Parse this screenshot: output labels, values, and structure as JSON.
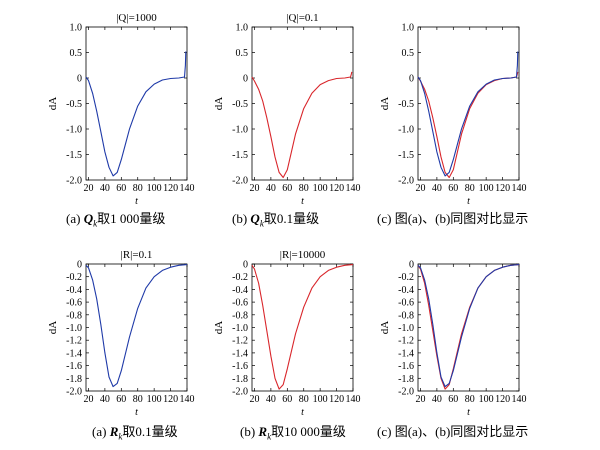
{
  "colors": {
    "blue": "#1f3aa8",
    "red": "#d9262b",
    "axis": "#000000"
  },
  "panels": [
    {
      "title": "|Q|=1000",
      "ylabel": "dA",
      "xlabel": "t",
      "xlim": [
        17,
        140
      ],
      "ylim": [
        -2.0,
        1.0
      ],
      "xticks": [
        20,
        40,
        60,
        80,
        100,
        120,
        140
      ],
      "yticks": [
        "1.0",
        "0.5",
        "0",
        "-0.5",
        "-1.0",
        "-1.5",
        "-2.0"
      ],
      "ytick_values": [
        1.0,
        0.5,
        0,
        -0.5,
        -1.0,
        -1.5,
        -2.0
      ],
      "series": [
        "blue"
      ],
      "caption": {
        "prefix": "(a) ",
        "symbol": "Q",
        "sub": "k",
        "text": "取1 000量级"
      }
    },
    {
      "title": "|Q|=0.1",
      "ylabel": "dA",
      "xlabel": "t",
      "xlim": [
        17,
        140
      ],
      "ylim": [
        -2.0,
        1.0
      ],
      "xticks": [
        20,
        40,
        60,
        80,
        100,
        120,
        140
      ],
      "yticks": [
        "1.0",
        "0.5",
        "0",
        "-0.5",
        "-1.0",
        "-1.5",
        "-2.0"
      ],
      "ytick_values": [
        1.0,
        0.5,
        0,
        -0.5,
        -1.0,
        -1.5,
        -2.0
      ],
      "series": [
        "red"
      ],
      "caption": {
        "prefix": "(b) ",
        "symbol": "Q",
        "sub": "k",
        "text": "取0.1量级"
      }
    },
    {
      "title": "",
      "ylabel": "dA",
      "xlabel": "t",
      "xlim": [
        17,
        140
      ],
      "ylim": [
        -2.0,
        1.0
      ],
      "xticks": [
        20,
        40,
        60,
        80,
        100,
        120,
        140
      ],
      "yticks": [
        "1.0",
        "0.5",
        "0",
        "-0.5",
        "-1.0",
        "-1.5",
        "-2.0"
      ],
      "ytick_values": [
        1.0,
        0.5,
        0,
        -0.5,
        -1.0,
        -1.5,
        -2.0
      ],
      "series": [
        "red",
        "blue"
      ],
      "caption": {
        "prefix": "(c) ",
        "symbol": "",
        "sub": "",
        "text": "图(a)、(b)同图对比显示"
      }
    },
    {
      "title": "|R|=0.1",
      "ylabel": "dA",
      "xlabel": "t",
      "xlim": [
        17,
        140
      ],
      "ylim": [
        -2.0,
        0
      ],
      "xticks": [
        20,
        40,
        60,
        80,
        100,
        120,
        140
      ],
      "yticks": [
        "0",
        "-0.2",
        "-0.4",
        "-0.6",
        "-0.8",
        "-1.0",
        "-1.2",
        "-1.4",
        "-1.6",
        "-1.8",
        "-2.0"
      ],
      "ytick_values": [
        0,
        -0.2,
        -0.4,
        -0.6,
        -0.8,
        -1.0,
        -1.2,
        -1.4,
        -1.6,
        -1.8,
        -2.0
      ],
      "series": [
        "blue"
      ],
      "caption": {
        "prefix": "(a) ",
        "symbol": "R",
        "sub": "k",
        "text": "取0.1量级"
      }
    },
    {
      "title": "|R|=10000",
      "ylabel": "dA",
      "xlabel": "t",
      "xlim": [
        17,
        140
      ],
      "ylim": [
        -2.0,
        0
      ],
      "xticks": [
        20,
        40,
        60,
        80,
        100,
        120,
        140
      ],
      "yticks": [
        "0",
        "-0.2",
        "-0.4",
        "-0.6",
        "-0.8",
        "-1.0",
        "-1.2",
        "-1.4",
        "-1.6",
        "-1.8",
        "-2.0"
      ],
      "ytick_values": [
        0,
        -0.2,
        -0.4,
        -0.6,
        -0.8,
        -1.0,
        -1.2,
        -1.4,
        -1.6,
        -1.8,
        -2.0
      ],
      "series": [
        "red"
      ],
      "caption": {
        "prefix": "(b) ",
        "symbol": "R",
        "sub": "k",
        "text": "取10 000量级"
      }
    },
    {
      "title": "",
      "ylabel": "dA",
      "xlabel": "t",
      "xlim": [
        17,
        140
      ],
      "ylim": [
        -2.0,
        0
      ],
      "xticks": [
        20,
        40,
        60,
        80,
        100,
        120,
        140
      ],
      "yticks": [
        "0",
        "-0.2",
        "-0.4",
        "-0.6",
        "-0.8",
        "-1.0",
        "-1.2",
        "-1.4",
        "-1.6",
        "-1.8",
        "-2.0"
      ],
      "ytick_values": [
        0,
        -0.2,
        -0.4,
        -0.6,
        -0.8,
        -1.0,
        -1.2,
        -1.4,
        -1.6,
        -1.8,
        -2.0
      ],
      "series": [
        "red",
        "blue"
      ],
      "caption": {
        "prefix": "(c) ",
        "symbol": "",
        "sub": "",
        "text": "图(a)、(b)同图对比显示"
      }
    }
  ],
  "chart_data": [
    {
      "type": "line",
      "title": "|Q|=1000",
      "xlabel": "t",
      "ylabel": "dA",
      "xlim": [
        17,
        140
      ],
      "ylim": [
        -2.0,
        1.0
      ],
      "grid": false,
      "x": [
        17,
        20,
        25,
        30,
        35,
        40,
        45,
        50,
        55,
        60,
        65,
        70,
        80,
        90,
        100,
        110,
        120,
        130,
        137,
        138,
        138.5
      ],
      "series": [
        {
          "color": "blue",
          "values": [
            0.02,
            -0.05,
            -0.3,
            -0.65,
            -1.05,
            -1.45,
            -1.75,
            -1.92,
            -1.85,
            -1.6,
            -1.3,
            -1.0,
            -0.55,
            -0.27,
            -0.12,
            -0.04,
            -0.01,
            0.0,
            0.02,
            0.25,
            0.52
          ]
        }
      ]
    },
    {
      "type": "line",
      "title": "|Q|=0.1",
      "xlabel": "t",
      "ylabel": "dA",
      "xlim": [
        17,
        140
      ],
      "ylim": [
        -2.0,
        1.0
      ],
      "grid": false,
      "x": [
        17,
        20,
        25,
        30,
        35,
        40,
        45,
        50,
        55,
        60,
        65,
        70,
        80,
        90,
        100,
        110,
        120,
        130,
        137,
        138,
        138.5
      ],
      "series": [
        {
          "color": "red",
          "values": [
            0.02,
            -0.06,
            -0.22,
            -0.45,
            -0.78,
            -1.15,
            -1.55,
            -1.85,
            -1.95,
            -1.8,
            -1.45,
            -1.1,
            -0.6,
            -0.3,
            -0.13,
            -0.05,
            -0.01,
            0.0,
            0.02,
            0.08,
            0.12
          ]
        }
      ]
    },
    {
      "type": "line",
      "title": "",
      "xlabel": "t",
      "ylabel": "dA",
      "xlim": [
        17,
        140
      ],
      "ylim": [
        -2.0,
        1.0
      ],
      "grid": false,
      "x": [
        17,
        20,
        25,
        30,
        35,
        40,
        45,
        50,
        55,
        60,
        65,
        70,
        80,
        90,
        100,
        110,
        120,
        130,
        137,
        138,
        138.5
      ],
      "series": [
        {
          "color": "red",
          "values": [
            0.02,
            -0.06,
            -0.22,
            -0.45,
            -0.78,
            -1.15,
            -1.55,
            -1.85,
            -1.95,
            -1.8,
            -1.45,
            -1.1,
            -0.6,
            -0.3,
            -0.13,
            -0.05,
            -0.01,
            0.0,
            0.02,
            0.08,
            0.12
          ]
        },
        {
          "color": "blue",
          "values": [
            0.02,
            -0.05,
            -0.3,
            -0.65,
            -1.05,
            -1.45,
            -1.75,
            -1.92,
            -1.85,
            -1.6,
            -1.3,
            -1.0,
            -0.55,
            -0.27,
            -0.12,
            -0.04,
            -0.01,
            0.0,
            0.02,
            0.25,
            0.52
          ]
        }
      ]
    },
    {
      "type": "line",
      "title": "|R|=0.1",
      "xlabel": "t",
      "ylabel": "dA",
      "xlim": [
        17,
        140
      ],
      "ylim": [
        -2.0,
        0
      ],
      "grid": false,
      "x": [
        17,
        20,
        25,
        30,
        35,
        40,
        45,
        50,
        55,
        60,
        70,
        80,
        90,
        100,
        110,
        120,
        130,
        140
      ],
      "series": [
        {
          "color": "blue",
          "values": [
            -0.02,
            -0.06,
            -0.25,
            -0.55,
            -0.95,
            -1.4,
            -1.78,
            -1.93,
            -1.88,
            -1.68,
            -1.15,
            -0.7,
            -0.38,
            -0.2,
            -0.1,
            -0.05,
            -0.02,
            -0.01
          ]
        }
      ]
    },
    {
      "type": "line",
      "title": "|R|=10000",
      "xlabel": "t",
      "ylabel": "dA",
      "xlim": [
        17,
        140
      ],
      "ylim": [
        -2.0,
        0
      ],
      "grid": false,
      "x": [
        17,
        20,
        25,
        30,
        35,
        40,
        45,
        50,
        55,
        60,
        70,
        80,
        90,
        100,
        110,
        120,
        130,
        140
      ],
      "series": [
        {
          "color": "red",
          "values": [
            -0.02,
            -0.08,
            -0.3,
            -0.65,
            -1.05,
            -1.45,
            -1.8,
            -1.97,
            -1.9,
            -1.65,
            -1.1,
            -0.68,
            -0.38,
            -0.2,
            -0.1,
            -0.05,
            -0.02,
            -0.01
          ]
        }
      ]
    },
    {
      "type": "line",
      "title": "",
      "xlabel": "t",
      "ylabel": "dA",
      "xlim": [
        17,
        140
      ],
      "ylim": [
        -2.0,
        0
      ],
      "grid": false,
      "x": [
        17,
        20,
        25,
        30,
        35,
        40,
        45,
        50,
        55,
        60,
        70,
        80,
        90,
        100,
        110,
        120,
        130,
        140
      ],
      "series": [
        {
          "color": "red",
          "values": [
            -0.02,
            -0.08,
            -0.3,
            -0.65,
            -1.05,
            -1.45,
            -1.8,
            -1.97,
            -1.9,
            -1.65,
            -1.1,
            -0.68,
            -0.38,
            -0.2,
            -0.1,
            -0.05,
            -0.02,
            -0.01
          ]
        },
        {
          "color": "blue",
          "values": [
            -0.02,
            -0.06,
            -0.25,
            -0.55,
            -0.95,
            -1.4,
            -1.78,
            -1.93,
            -1.88,
            -1.68,
            -1.15,
            -0.7,
            -0.38,
            -0.2,
            -0.1,
            -0.05,
            -0.02,
            -0.01
          ]
        }
      ]
    }
  ]
}
